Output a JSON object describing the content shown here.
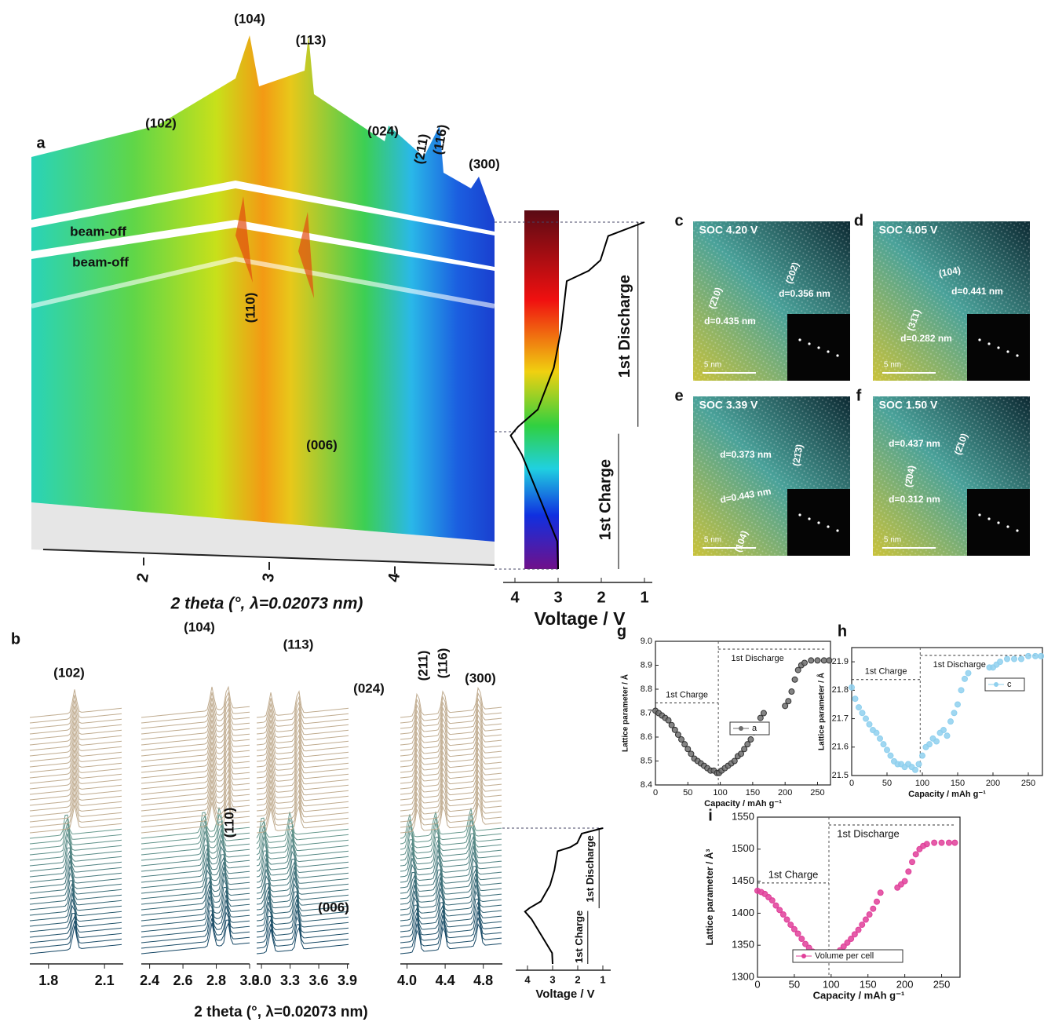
{
  "panel_a": {
    "label": "a",
    "peak_labels": [
      "(104)",
      "(113)",
      "(102)",
      "(024)",
      "(211)",
      "(116)",
      "(300)",
      "(110)",
      "(006)"
    ],
    "beam_off": [
      "beam-off",
      "beam-off"
    ],
    "x_label": "2 theta (°, λ=0.02073 nm)",
    "xticks": [
      2,
      3,
      4
    ],
    "voltage": {
      "label": "Voltage / V",
      "xticks": [
        4,
        3,
        2,
        1
      ],
      "charge": "1st Charge",
      "discharge": "1st Discharge",
      "curve": {
        "voltage": [
          3.0,
          3.02,
          3.38,
          3.84,
          4.1,
          3.93,
          3.47,
          3.1,
          2.93,
          2.8,
          2.29,
          2.02,
          1.84,
          1.0
        ],
        "progress": [
          0,
          0.08,
          0.19,
          0.33,
          0.385,
          0.41,
          0.46,
          0.58,
          0.69,
          0.83,
          0.86,
          0.89,
          0.96,
          1
        ]
      }
    }
  },
  "panel_b": {
    "label": "b",
    "peak_labels": [
      "(102)",
      "(104)",
      "(113)",
      "(024)",
      "(211)",
      "(116)",
      "(300)",
      "(110)",
      "(006)"
    ],
    "x_label": "2 theta (°, λ=0.02073 nm)",
    "xticks": [
      [
        1.8,
        2.1
      ],
      [
        2.4,
        2.6,
        2.8,
        {
          "value": 3,
          "label": "3.0"
        }
      ],
      [
        {
          "value": 3,
          "label": "3.0"
        },
        3.3,
        3.6,
        3.9
      ],
      [
        {
          "value": 4,
          "label": "4.0"
        },
        4.4,
        4.8
      ]
    ],
    "xlims": [
      [
        1.7,
        2.2
      ],
      [
        2.35,
        3.0
      ],
      [
        2.95,
        3.92
      ],
      [
        3.93,
        5.0
      ]
    ],
    "voltage": {
      "label": "Voltage / V",
      "xticks": [
        4,
        3,
        2,
        1
      ],
      "charge": "1st Charge",
      "discharge": "1st Discharge",
      "curve": {
        "voltage": [
          3.0,
          3.02,
          3.38,
          3.84,
          4.1,
          3.93,
          3.47,
          3.1,
          2.93,
          2.8,
          2.29,
          2.02,
          1.84,
          1.0
        ],
        "progress": [
          0,
          0.08,
          0.19,
          0.33,
          0.385,
          0.41,
          0.46,
          0.58,
          0.69,
          0.83,
          0.86,
          0.89,
          0.96,
          1
        ]
      }
    }
  },
  "images": [
    {
      "label": "c",
      "soc": "SOC 4.20 V",
      "notes": [
        "(2̄10)",
        "(202)",
        "d=0.356 nm",
        "d=0.435 nm"
      ],
      "scale": "5 nm"
    },
    {
      "label": "d",
      "soc": "SOC 4.05 V",
      "notes": [
        "(104)",
        "d=0.441 nm",
        "(31̄1)",
        "d=0.282 nm"
      ],
      "scale": "5 nm"
    },
    {
      "label": "e",
      "soc": "SOC 3.39 V",
      "notes": [
        "d=0.373 nm",
        "(21̄3)",
        "d=0.443 nm",
        "(104)"
      ],
      "scale": "5 nm"
    },
    {
      "label": "f",
      "soc": "SOC 1.50 V",
      "notes": [
        "d=0.437 nm",
        "(2̄10)",
        "(2̄04)",
        "d=0.312 nm"
      ],
      "scale": "5 nm"
    }
  ],
  "chart_data": [
    {
      "type": "scatter",
      "panel": "g",
      "x_label": "Capacity / mAh g⁻¹",
      "y_label": "Lattice parameter / Å",
      "annotations": [
        "1st Charge",
        "1st Discharge"
      ],
      "divider": 97,
      "xlim": [
        0,
        270
      ],
      "ylim": [
        8.4,
        9.0
      ],
      "xticks": [
        0,
        50,
        100,
        150,
        200,
        250
      ],
      "yticks": [
        8.4,
        8.5,
        8.6,
        8.7,
        8.8,
        8.9,
        {
          "value": 9,
          "label": "9.0"
        }
      ],
      "series": [
        {
          "name": "a",
          "color": "#6e6e6e",
          "x": [
            0,
            5,
            10,
            15,
            20,
            25,
            30,
            35,
            40,
            45,
            50,
            55,
            60,
            65,
            70,
            75,
            80,
            85,
            90,
            95,
            98,
            102,
            107,
            112,
            117,
            122,
            127,
            132,
            137,
            142,
            147,
            152,
            157,
            162,
            167,
            200,
            205,
            210,
            215,
            220,
            225,
            230,
            240,
            250,
            260,
            268
          ],
          "values": [
            8.71,
            8.7,
            8.69,
            8.68,
            8.67,
            8.65,
            8.63,
            8.61,
            8.59,
            8.57,
            8.55,
            8.53,
            8.51,
            8.5,
            8.49,
            8.48,
            8.47,
            8.46,
            8.46,
            8.45,
            8.45,
            8.46,
            8.47,
            8.48,
            8.49,
            8.5,
            8.52,
            8.53,
            8.55,
            8.57,
            8.59,
            8.62,
            8.65,
            8.68,
            8.7,
            8.73,
            8.75,
            8.79,
            8.84,
            8.88,
            8.9,
            8.91,
            8.92,
            8.92,
            8.92,
            8.92
          ]
        }
      ]
    },
    {
      "type": "scatter",
      "panel": "h",
      "x_label": "Capacity / mAh g⁻¹",
      "y_label": "Lattice parameter / Å",
      "annotations": [
        "1st Charge",
        "1st Discharge"
      ],
      "divider": 97,
      "xlim": [
        0,
        270
      ],
      "ylim": [
        21.5,
        21.95
      ],
      "xticks": [
        0,
        50,
        100,
        150,
        200,
        250
      ],
      "yticks": [
        21.5,
        21.6,
        21.7,
        21.8,
        21.9
      ],
      "series": [
        {
          "name": "c",
          "color": "#8fd0ee",
          "x": [
            0,
            5,
            10,
            15,
            20,
            25,
            30,
            35,
            40,
            45,
            50,
            55,
            60,
            65,
            70,
            75,
            80,
            85,
            90,
            95,
            100,
            105,
            110,
            115,
            120,
            125,
            130,
            135,
            140,
            145,
            150,
            155,
            160,
            165,
            195,
            200,
            205,
            210,
            220,
            230,
            240,
            250,
            260,
            268
          ],
          "values": [
            21.81,
            21.77,
            21.74,
            21.72,
            21.7,
            21.68,
            21.66,
            21.65,
            21.63,
            21.61,
            21.59,
            21.57,
            21.55,
            21.54,
            21.54,
            21.53,
            21.54,
            21.53,
            21.52,
            21.54,
            21.57,
            21.6,
            21.61,
            21.63,
            21.62,
            21.65,
            21.66,
            21.64,
            21.69,
            21.72,
            21.75,
            21.8,
            21.84,
            21.86,
            21.88,
            21.88,
            21.89,
            21.9,
            21.91,
            21.91,
            21.91,
            21.92,
            21.92,
            21.92
          ]
        }
      ]
    },
    {
      "type": "scatter",
      "panel": "i",
      "x_label": "Capacity / mAh g⁻¹",
      "y_label": "Lattice parameter / Å³",
      "annotations": [
        "1st Charge",
        "1st Discharge"
      ],
      "divider": 97,
      "xlim": [
        0,
        275
      ],
      "ylim": [
        1300,
        1550
      ],
      "xticks": [
        0,
        50,
        100,
        150,
        200,
        250
      ],
      "yticks": [
        1300,
        1350,
        1400,
        1450,
        1500,
        1550
      ],
      "series": [
        {
          "name": "Volume per cell",
          "color": "#e0409a",
          "x": [
            0,
            5,
            10,
            15,
            20,
            25,
            30,
            35,
            40,
            45,
            50,
            55,
            60,
            65,
            70,
            75,
            80,
            85,
            90,
            95,
            98,
            102,
            107,
            112,
            117,
            122,
            127,
            132,
            137,
            142,
            147,
            152,
            157,
            162,
            167,
            190,
            195,
            200,
            205,
            210,
            215,
            220,
            225,
            230,
            240,
            250,
            260,
            268
          ],
          "values": [
            1435,
            1433,
            1430,
            1425,
            1420,
            1412,
            1405,
            1398,
            1390,
            1382,
            1375,
            1368,
            1360,
            1352,
            1346,
            1340,
            1336,
            1333,
            1331,
            1330,
            1330,
            1333,
            1337,
            1342,
            1348,
            1354,
            1360,
            1367,
            1374,
            1382,
            1390,
            1398,
            1407,
            1418,
            1432,
            1440,
            1445,
            1450,
            1465,
            1480,
            1492,
            1500,
            1505,
            1508,
            1510,
            1510,
            1510,
            1510
          ]
        }
      ]
    }
  ]
}
